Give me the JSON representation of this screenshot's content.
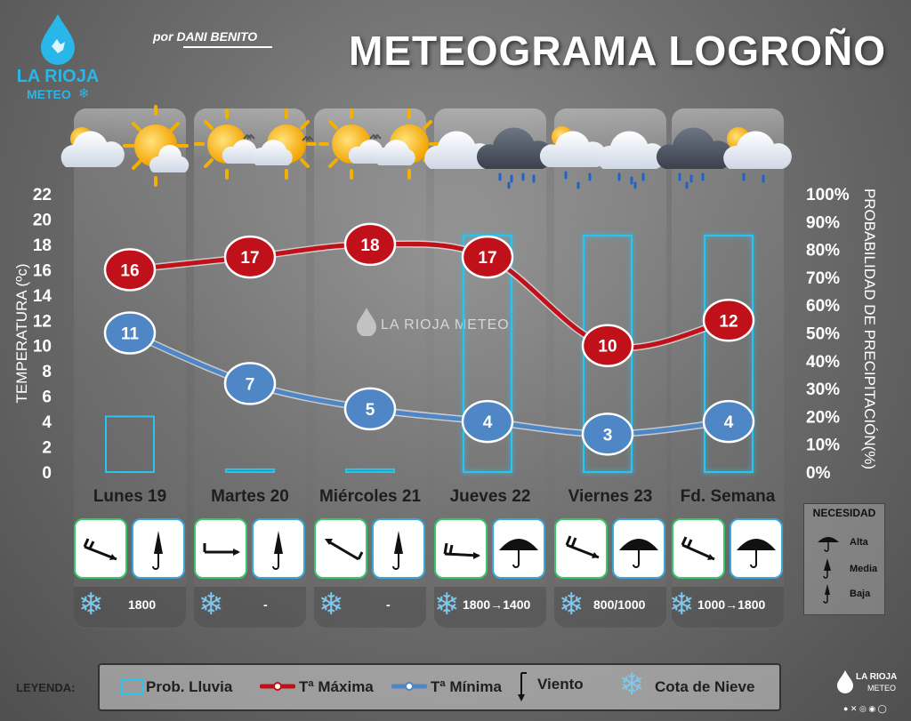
{
  "header": {
    "title": "METEOGRAMA LOGROÑO",
    "byline": "por DANI BENITO",
    "logo_name": "LA RIOJA",
    "logo_sub": "METEO"
  },
  "watermark": "LA RIOJA METEO",
  "chart_data": {
    "type": "line",
    "categories": [
      "Lunes 19",
      "Martes 20",
      "Miércoles 21",
      "Jueves 22",
      "Viernes 23",
      "Fd. Semana"
    ],
    "series": [
      {
        "name": "Tª Máxima",
        "values": [
          16,
          17,
          18,
          17,
          10,
          12
        ],
        "color": "#c0101a"
      },
      {
        "name": "Tª Mínima",
        "values": [
          11,
          7,
          5,
          4,
          3,
          4
        ],
        "color": "#4f86c6"
      }
    ],
    "precip_prob": {
      "name": "Prob. Lluvia",
      "values": [
        20,
        1,
        1,
        85,
        85,
        85
      ],
      "color": "#29c4ef"
    },
    "ylabel": "TEMPERATURA (ºc)",
    "ylabel_right": "PROBABILIDAD DE PRECIPITACIÓN(%)",
    "ylim": [
      0,
      22
    ],
    "ylim_right": [
      0,
      100
    ],
    "yticks": [
      "0",
      "2",
      "4",
      "6",
      "8",
      "10",
      "12",
      "14",
      "16",
      "18",
      "20",
      "22"
    ],
    "yticks_right": [
      "0%",
      "10%",
      "20%",
      "30%",
      "40%",
      "50%",
      "60%",
      "70%",
      "80%",
      "90%",
      "100%"
    ]
  },
  "days": [
    {
      "name": "Lunes 19",
      "snow": "1800",
      "need": "media",
      "icons": [
        "partly-cloudy-icon",
        "sun-cloud-icon"
      ]
    },
    {
      "name": "Martes 20",
      "snow": "-",
      "need": "media",
      "icons": [
        "sun-haze-icon",
        "sun-haze-icon"
      ]
    },
    {
      "name": "Miércoles 21",
      "snow": "-",
      "need": "media",
      "icons": [
        "sun-haze-icon",
        "sun-haze-icon"
      ]
    },
    {
      "name": "Jueves 22",
      "snow": "1800→1400",
      "need": "alta",
      "icons": [
        "cloud-icon",
        "rain-cloud-icon"
      ]
    },
    {
      "name": "Viernes 23",
      "snow": "800/1000",
      "need": "alta",
      "icons": [
        "sun-rain-icon",
        "rain-cloud-icon"
      ]
    },
    {
      "name": "Fd. Semana",
      "snow": "1000→1800",
      "need": "alta",
      "icons": [
        "rain-cloud-icon",
        "sun-rain-icon"
      ]
    }
  ],
  "need": {
    "title": "NECESIDAD",
    "alta": "Alta",
    "media": "Media",
    "baja": "Baja"
  },
  "legend": {
    "label": "LEYENDA:",
    "rain": "Prob. Lluvia",
    "tmax": "Tª Máxima",
    "tmin": "Tª Mínima",
    "wind": "Viento",
    "snow": "Cota de Nieve"
  },
  "colors": {
    "tmax": "#c0101a",
    "tmin": "#4f86c6",
    "rain": "#29c4ef",
    "logo": "#29b6e8"
  }
}
